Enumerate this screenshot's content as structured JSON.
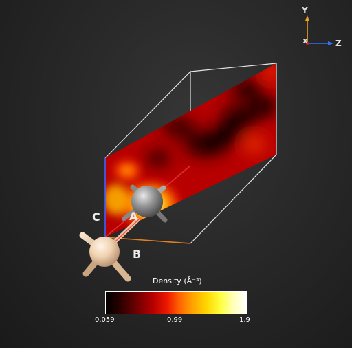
{
  "orientation": {
    "axes": {
      "y_label": "Y",
      "z_label": "Z",
      "x_label": "X"
    },
    "colors": {
      "y": "#f0a020",
      "z": "#3070ff",
      "x": "#e02020"
    }
  },
  "lattice": {
    "a_label": "A",
    "b_label": "B",
    "c_label": "C",
    "colors": {
      "a": "#e03030",
      "b": "#e08020",
      "c": "#4060ff",
      "cell": "#e6e6e6"
    }
  },
  "atoms": {
    "central_color": "#9a9a9a",
    "near_color": "#f0d2b0",
    "far_color": "#f0d2b0"
  },
  "colorbar": {
    "title": "Density (Å⁻³)",
    "tick_min": "0.059",
    "tick_mid": "0.99",
    "tick_max": "1.9"
  }
}
